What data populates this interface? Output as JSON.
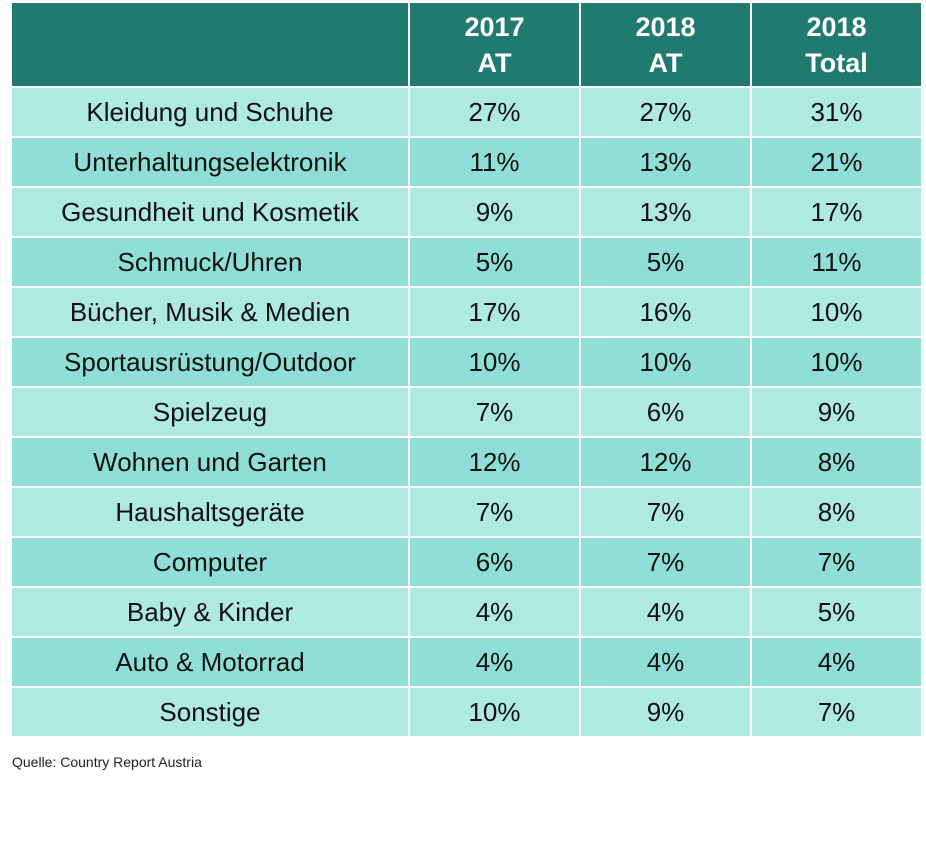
{
  "table": {
    "header": {
      "corner": "",
      "col1": {
        "line1": "2017",
        "line2": "AT"
      },
      "col2": {
        "line1": "2018",
        "line2": "AT"
      },
      "col3": {
        "line1": "2018",
        "line2": "Total"
      }
    },
    "rows": [
      {
        "category": "Kleidung und Schuhe",
        "at2017": "27%",
        "at2018": "27%",
        "total2018": "31%"
      },
      {
        "category": "Unterhaltungselektronik",
        "at2017": "11%",
        "at2018": "13%",
        "total2018": "21%"
      },
      {
        "category": "Gesundheit und Kosmetik",
        "at2017": "9%",
        "at2018": "13%",
        "total2018": "17%"
      },
      {
        "category": "Schmuck/Uhren",
        "at2017": "5%",
        "at2018": "5%",
        "total2018": "11%"
      },
      {
        "category": "Bücher, Musik & Medien",
        "at2017": "17%",
        "at2018": "16%",
        "total2018": "10%"
      },
      {
        "category": "Sportausrüstung/Outdoor",
        "at2017": "10%",
        "at2018": "10%",
        "total2018": "10%"
      },
      {
        "category": "Spielzeug",
        "at2017": "7%",
        "at2018": "6%",
        "total2018": "9%"
      },
      {
        "category": "Wohnen und Garten",
        "at2017": "12%",
        "at2018": "12%",
        "total2018": "8%"
      },
      {
        "category": "Haushaltsgeräte",
        "at2017": "7%",
        "at2018": "7%",
        "total2018": "8%"
      },
      {
        "category": "Computer",
        "at2017": "6%",
        "at2018": "7%",
        "total2018": "7%"
      },
      {
        "category": "Baby & Kinder",
        "at2017": "4%",
        "at2018": "4%",
        "total2018": "5%"
      },
      {
        "category": "Auto & Motorrad",
        "at2017": "4%",
        "at2018": "4%",
        "total2018": "4%"
      },
      {
        "category": "Sonstige",
        "at2017": "10%",
        "at2018": "9%",
        "total2018": "7%"
      }
    ]
  },
  "source": "Quelle: Country Report Austria",
  "colors": {
    "header_bg": "#217a70",
    "row_light": "#aee9e2",
    "row_dark": "#8fdfd7"
  }
}
